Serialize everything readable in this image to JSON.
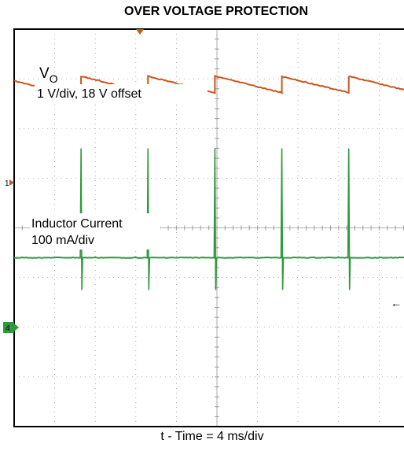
{
  "title": "OVER VOLTAGE PROTECTION",
  "xlabel": "t - Time = 4 ms/div",
  "colors": {
    "frame": "#000000",
    "grid": "#9a9a9a",
    "ch1": "#c8561e",
    "ch4": "#2e9a3a",
    "ch1_marker": "#c8561e",
    "ch4_marker": "#2e9a3a"
  },
  "chart_data": {
    "type": "line",
    "title": "OVER VOLTAGE PROTECTION",
    "xlabel": "t - Time = 4 ms/div",
    "xlim": [
      0,
      40
    ],
    "x_unit": "ms",
    "grid": true,
    "divisions": {
      "x": 10,
      "y": 8
    },
    "annotations": [
      {
        "text_main": "V",
        "text_sub": "O",
        "text_line2": "1 V/div, 18 V offset"
      },
      {
        "text_line1": "Inductor Current",
        "text_line2": "100 mA/div"
      }
    ],
    "channel_markers": [
      {
        "label": "1",
        "channel": "ch1"
      },
      {
        "label": "4",
        "channel": "ch4"
      }
    ],
    "series": [
      {
        "channel": "ch1",
        "unit": "V",
        "reset_times_ms": [
          0,
          6.6,
          13.2,
          19.8,
          26.4,
          33.0
        ],
        "peak_div": 3.05,
        "trough_div": 2.72,
        "start_div": 2.96
      },
      {
        "channel": "ch4",
        "unit": "mA",
        "baseline_div": -0.6,
        "spike_times_ms": [
          6.6,
          13.2,
          19.8,
          26.4,
          33.0
        ],
        "spike_up_div": 1.6,
        "spike_down_div": -0.65
      }
    ]
  }
}
